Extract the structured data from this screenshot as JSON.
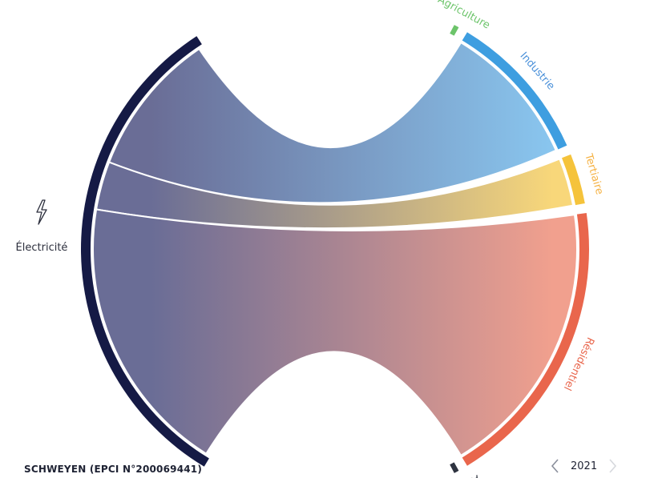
{
  "footer": {
    "entity": "SCHWEYEN (EPCI N°200069441)",
    "year": "2021"
  },
  "chart_data": {
    "type": "chord",
    "source": {
      "name": "Électricité",
      "icon": "lightning-bolt-icon",
      "color": "#151a45"
    },
    "targets": [
      {
        "name": "Agriculture",
        "color": "#6cc46a",
        "label_color": "#6cc46a",
        "value": 1
      },
      {
        "name": "Industrie",
        "color": "#3e9ee0",
        "label_color": "#4a90d9",
        "value": 30
      },
      {
        "name": "Tertiaire",
        "color": "#f5c33b",
        "label_color": "#f5b142",
        "value": 10
      },
      {
        "name": "Résidentiel",
        "color": "#e9664c",
        "label_color": "#e9664c",
        "value": 58
      },
      {
        "name": "Autres",
        "color": "#2e3340",
        "label_color": "#2e3340",
        "value": 1
      }
    ],
    "flow_colors": {
      "source": "#6a6d96",
      "Industrie": "#89c6ef",
      "Tertiaire": "#f8d77a",
      "Résidentiel": "#f1a08e"
    }
  }
}
